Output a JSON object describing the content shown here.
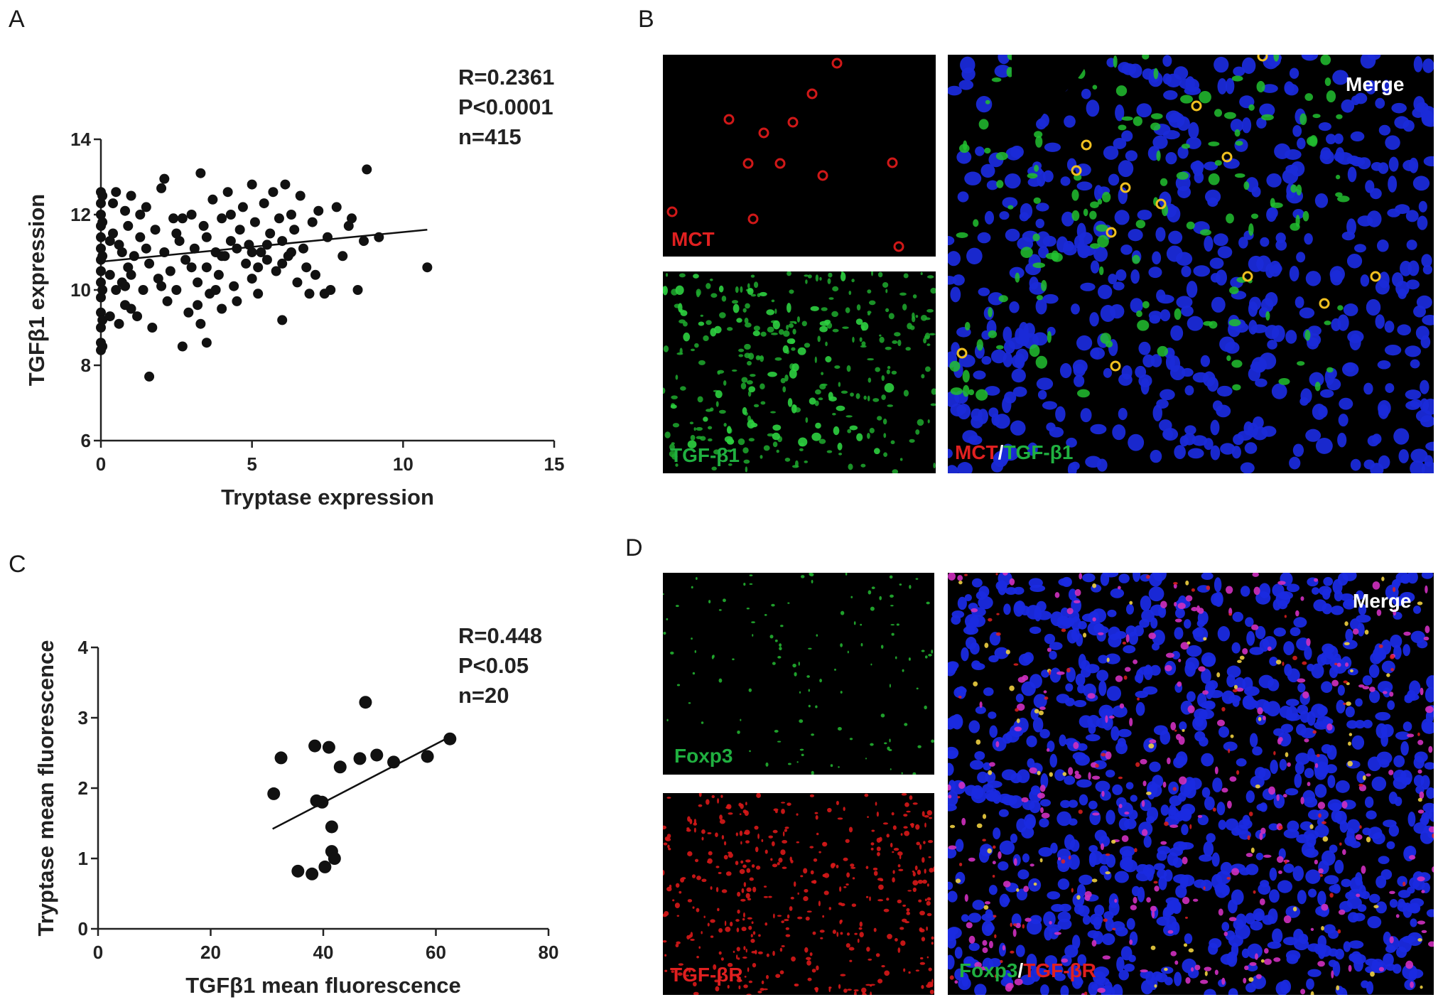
{
  "panels": {
    "a": {
      "letter": "A"
    },
    "b": {
      "letter": "B"
    },
    "c": {
      "letter": "C"
    },
    "d": {
      "letter": "D"
    }
  },
  "chart_data": [
    {
      "panel": "A",
      "type": "scatter",
      "xlabel": "Tryptase expression",
      "ylabel": "TGFβ1 expression",
      "xlim": [
        0,
        15
      ],
      "ylim": [
        6,
        14
      ],
      "xticks": [
        0,
        5,
        10,
        15
      ],
      "yticks": [
        6,
        8,
        10,
        12,
        14
      ],
      "stats": {
        "r": "R=0.2361",
        "p": "P<0.0001",
        "n": "n=415"
      },
      "regression": {
        "x": [
          0,
          10.8
        ],
        "y": [
          10.75,
          11.6
        ]
      },
      "points": [
        [
          0,
          8.4
        ],
        [
          0,
          8.6
        ],
        [
          0,
          9.0
        ],
        [
          0,
          9.4
        ],
        [
          0,
          9.8
        ],
        [
          0,
          10.2
        ],
        [
          0,
          10.5
        ],
        [
          0,
          10.8
        ],
        [
          0,
          11.1
        ],
        [
          0,
          11.4
        ],
        [
          0,
          11.7
        ],
        [
          0,
          12.0
        ],
        [
          0,
          12.3
        ],
        [
          0,
          12.6
        ],
        [
          0.05,
          8.5
        ],
        [
          0.05,
          9.2
        ],
        [
          0.05,
          10.0
        ],
        [
          0.05,
          10.9
        ],
        [
          0.05,
          11.8
        ],
        [
          0.05,
          12.5
        ],
        [
          0.3,
          9.3
        ],
        [
          0.3,
          10.4
        ],
        [
          0.4,
          11.5
        ],
        [
          0.4,
          12.3
        ],
        [
          0.5,
          10.0
        ],
        [
          0.6,
          9.1
        ],
        [
          0.7,
          11.0
        ],
        [
          0.8,
          12.1
        ],
        [
          0.9,
          10.6
        ],
        [
          1.0,
          9.5
        ],
        [
          0.5,
          12.6
        ],
        [
          0.6,
          11.2
        ],
        [
          0.7,
          10.2
        ],
        [
          0.8,
          9.6
        ],
        [
          0.9,
          11.7
        ],
        [
          1.0,
          12.5
        ],
        [
          1.1,
          10.9
        ],
        [
          1.2,
          9.3
        ],
        [
          1.3,
          11.4
        ],
        [
          1.4,
          10.0
        ],
        [
          1.5,
          12.2
        ],
        [
          1.6,
          10.7
        ],
        [
          1.7,
          9.0
        ],
        [
          1.8,
          11.6
        ],
        [
          1.9,
          10.3
        ],
        [
          2.0,
          12.7
        ],
        [
          2.1,
          11.0
        ],
        [
          2.2,
          9.7
        ],
        [
          2.3,
          10.5
        ],
        [
          2.4,
          11.9
        ],
        [
          1.6,
          7.7
        ],
        [
          2.1,
          12.95
        ],
        [
          2.5,
          10.0
        ],
        [
          2.6,
          11.3
        ],
        [
          2.7,
          8.5
        ],
        [
          2.8,
          10.8
        ],
        [
          2.9,
          9.4
        ],
        [
          3.0,
          12.0
        ],
        [
          3.1,
          11.1
        ],
        [
          3.2,
          10.2
        ],
        [
          3.3,
          9.1
        ],
        [
          3.3,
          13.1
        ],
        [
          3.4,
          11.7
        ],
        [
          3.5,
          10.6
        ],
        [
          3.5,
          8.6
        ],
        [
          3.6,
          9.9
        ],
        [
          3.7,
          12.4
        ],
        [
          3.8,
          11.0
        ],
        [
          3.9,
          10.4
        ],
        [
          4.0,
          9.5
        ],
        [
          4.0,
          11.9
        ],
        [
          4.1,
          10.9
        ],
        [
          4.2,
          12.6
        ],
        [
          4.3,
          11.3
        ],
        [
          4.4,
          10.1
        ],
        [
          4.5,
          9.7
        ],
        [
          4.6,
          11.6
        ],
        [
          4.7,
          12.2
        ],
        [
          4.8,
          10.7
        ],
        [
          4.9,
          11.2
        ],
        [
          5.0,
          12.8
        ],
        [
          5.0,
          10.3
        ],
        [
          5.1,
          11.8
        ],
        [
          5.2,
          9.9
        ],
        [
          5.3,
          11.0
        ],
        [
          5.4,
          12.3
        ],
        [
          5.5,
          10.8
        ],
        [
          5.6,
          11.5
        ],
        [
          5.7,
          12.6
        ],
        [
          5.8,
          10.5
        ],
        [
          5.9,
          11.9
        ],
        [
          6.0,
          9.2
        ],
        [
          6.0,
          11.3
        ],
        [
          6.1,
          12.8
        ],
        [
          6.2,
          10.9
        ],
        [
          6.3,
          12.0
        ],
        [
          6.4,
          11.6
        ],
        [
          6.5,
          10.2
        ],
        [
          6.6,
          12.5
        ],
        [
          6.7,
          11.1
        ],
        [
          6.8,
          10.6
        ],
        [
          6.9,
          9.9
        ],
        [
          7.0,
          11.8
        ],
        [
          7.1,
          10.4
        ],
        [
          7.2,
          12.1
        ],
        [
          7.4,
          9.9
        ],
        [
          7.5,
          11.4
        ],
        [
          7.6,
          10.0
        ],
        [
          7.8,
          12.2
        ],
        [
          8.0,
          10.9
        ],
        [
          8.2,
          11.7
        ],
        [
          8.3,
          11.9
        ],
        [
          8.5,
          10.0
        ],
        [
          8.7,
          11.3
        ],
        [
          8.8,
          13.2
        ],
        [
          9.2,
          11.4
        ],
        [
          10.8,
          10.6
        ],
        [
          2.5,
          11.5
        ],
        [
          3.0,
          10.6
        ],
        [
          3.5,
          11.4
        ],
        [
          4.0,
          10.9
        ],
        [
          4.5,
          11.1
        ],
        [
          5.0,
          11.0
        ],
        [
          5.5,
          11.2
        ],
        [
          6.0,
          10.7
        ],
        [
          1.0,
          10.4
        ],
        [
          1.5,
          11.1
        ],
        [
          2.0,
          10.1
        ],
        [
          3.8,
          10.0
        ],
        [
          4.3,
          12.0
        ],
        [
          5.2,
          10.6
        ],
        [
          6.3,
          11.0
        ],
        [
          0.3,
          11.3
        ],
        [
          0.8,
          10.1
        ],
        [
          1.3,
          12.0
        ],
        [
          2.7,
          11.9
        ],
        [
          3.2,
          9.6
        ]
      ]
    },
    {
      "panel": "C",
      "type": "scatter",
      "xlabel": "TGFβ1 mean fluorescence",
      "ylabel": "Tryptase mean fluorescence",
      "xlim": [
        0,
        80
      ],
      "ylim": [
        0,
        4
      ],
      "xticks": [
        0,
        20,
        40,
        60,
        80
      ],
      "yticks": [
        0,
        1,
        2,
        3,
        4
      ],
      "stats": {
        "r": "R=0.448",
        "p": "P<0.05",
        "n": "n=20"
      },
      "regression": {
        "x": [
          31,
          62.5
        ],
        "y": [
          1.42,
          2.73
        ]
      },
      "points": [
        [
          31.2,
          1.92
        ],
        [
          32.5,
          2.43
        ],
        [
          35.5,
          0.82
        ],
        [
          38.0,
          0.78
        ],
        [
          38.5,
          2.6
        ],
        [
          38.8,
          1.82
        ],
        [
          39.8,
          1.8
        ],
        [
          40.3,
          0.88
        ],
        [
          41.0,
          2.58
        ],
        [
          41.5,
          1.45
        ],
        [
          41.5,
          1.1
        ],
        [
          42.0,
          1.0
        ],
        [
          43.0,
          2.3
        ],
        [
          46.5,
          2.42
        ],
        [
          47.5,
          3.22
        ],
        [
          49.5,
          2.47
        ],
        [
          52.5,
          2.37
        ],
        [
          58.5,
          2.45
        ],
        [
          62.5,
          2.7
        ]
      ]
    }
  ],
  "micrographs": {
    "b_mct": {
      "label": "MCT",
      "color": "#e02020"
    },
    "b_tgfb1": {
      "label": "TGF-β1",
      "color": "#20b040"
    },
    "b_merge": {
      "title": "Merge",
      "label_a": "MCT",
      "sep": "/",
      "label_b": "TGF-β1"
    },
    "d_foxp3": {
      "label": "Foxp3",
      "color": "#20b040"
    },
    "d_tgfbr": {
      "label": "TGF-βR",
      "color": "#e02020"
    },
    "d_merge": {
      "title": "Merge",
      "label_a": "Foxp3",
      "sep": "/",
      "label_b": "TGF-βR"
    }
  }
}
